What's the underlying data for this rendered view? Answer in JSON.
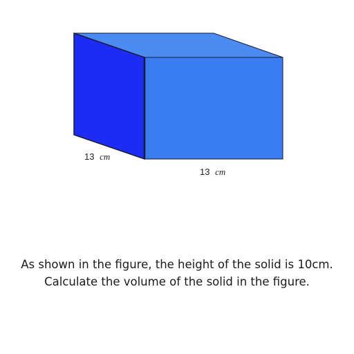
{
  "figure": {
    "colors": {
      "front_face": "#3a7df3",
      "side_face": "#1d2cf5",
      "top_face": "#4a8cf2",
      "edge": "#1a1a33"
    },
    "labels": {
      "depth_value": "13",
      "depth_unit": "cm",
      "width_value": "13",
      "width_unit": "cm"
    }
  },
  "question": {
    "line1": "As shown in the figure, the height of the solid is 10cm.",
    "line2": "Calculate the volume of the solid in the figure."
  }
}
